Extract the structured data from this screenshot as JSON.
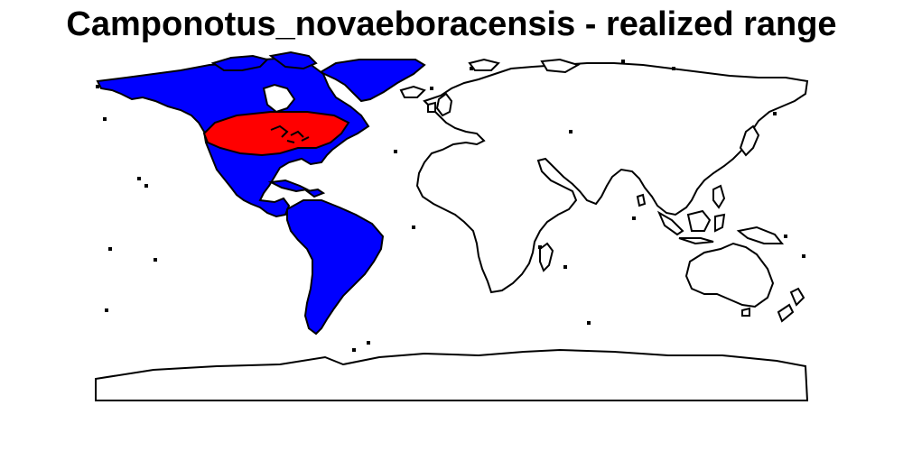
{
  "title": "Camponotus_novaeboracensis - realized range",
  "colors": {
    "background_land": "#ffffff",
    "range_region": "#0000ff",
    "realized_range": "#ff0000",
    "outline": "#000000"
  },
  "legend": []
}
